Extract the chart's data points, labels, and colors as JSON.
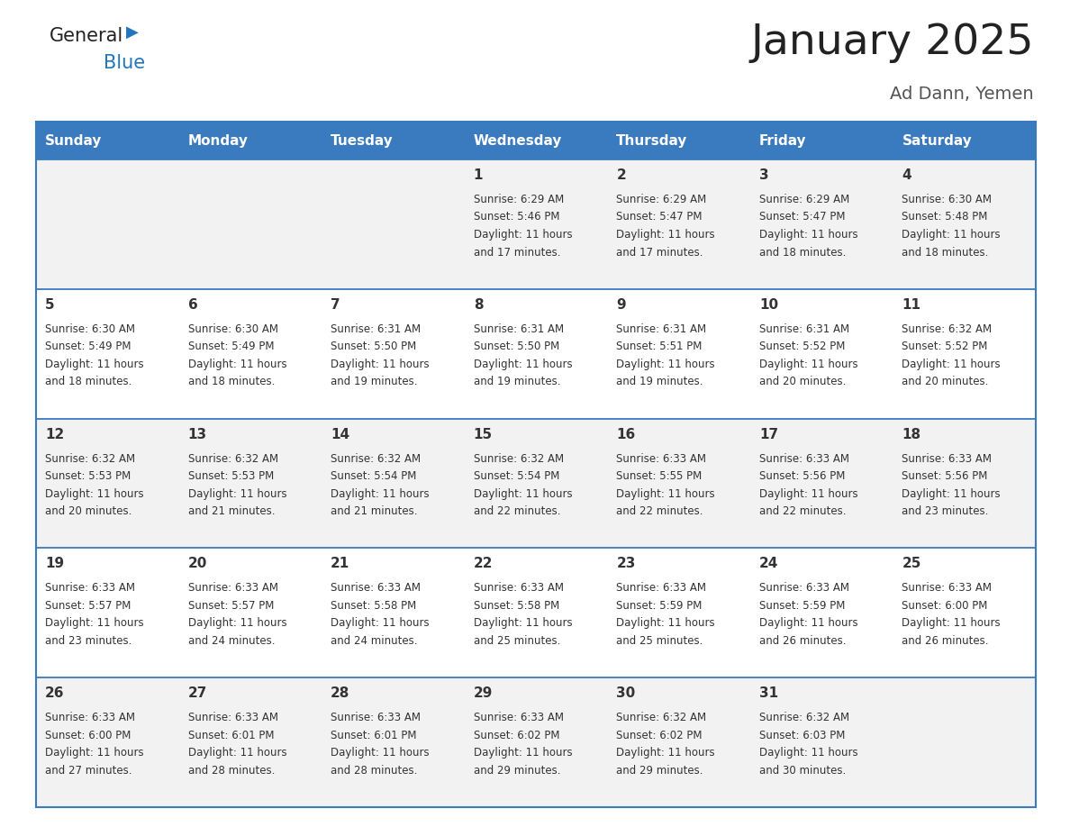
{
  "title": "January 2025",
  "subtitle": "Ad Dann, Yemen",
  "days_of_week": [
    "Sunday",
    "Monday",
    "Tuesday",
    "Wednesday",
    "Thursday",
    "Friday",
    "Saturday"
  ],
  "header_bg": "#3a7abf",
  "header_text": "#ffffff",
  "row_bg_even": "#f2f2f2",
  "row_bg_odd": "#ffffff",
  "cell_border_color": "#3a7abf",
  "day_number_color": "#333333",
  "info_text_color": "#333333",
  "logo_general_color": "#222222",
  "logo_blue_color": "#2176bc",
  "title_color": "#222222",
  "subtitle_color": "#555555",
  "calendar_data": [
    [
      null,
      null,
      null,
      {
        "day": 1,
        "sunrise": "6:29 AM",
        "sunset": "5:46 PM",
        "daylight": "11 hours and 17 minutes."
      },
      {
        "day": 2,
        "sunrise": "6:29 AM",
        "sunset": "5:47 PM",
        "daylight": "11 hours and 17 minutes."
      },
      {
        "day": 3,
        "sunrise": "6:29 AM",
        "sunset": "5:47 PM",
        "daylight": "11 hours and 18 minutes."
      },
      {
        "day": 4,
        "sunrise": "6:30 AM",
        "sunset": "5:48 PM",
        "daylight": "11 hours and 18 minutes."
      }
    ],
    [
      {
        "day": 5,
        "sunrise": "6:30 AM",
        "sunset": "5:49 PM",
        "daylight": "11 hours and 18 minutes."
      },
      {
        "day": 6,
        "sunrise": "6:30 AM",
        "sunset": "5:49 PM",
        "daylight": "11 hours and 18 minutes."
      },
      {
        "day": 7,
        "sunrise": "6:31 AM",
        "sunset": "5:50 PM",
        "daylight": "11 hours and 19 minutes."
      },
      {
        "day": 8,
        "sunrise": "6:31 AM",
        "sunset": "5:50 PM",
        "daylight": "11 hours and 19 minutes."
      },
      {
        "day": 9,
        "sunrise": "6:31 AM",
        "sunset": "5:51 PM",
        "daylight": "11 hours and 19 minutes."
      },
      {
        "day": 10,
        "sunrise": "6:31 AM",
        "sunset": "5:52 PM",
        "daylight": "11 hours and 20 minutes."
      },
      {
        "day": 11,
        "sunrise": "6:32 AM",
        "sunset": "5:52 PM",
        "daylight": "11 hours and 20 minutes."
      }
    ],
    [
      {
        "day": 12,
        "sunrise": "6:32 AM",
        "sunset": "5:53 PM",
        "daylight": "11 hours and 20 minutes."
      },
      {
        "day": 13,
        "sunrise": "6:32 AM",
        "sunset": "5:53 PM",
        "daylight": "11 hours and 21 minutes."
      },
      {
        "day": 14,
        "sunrise": "6:32 AM",
        "sunset": "5:54 PM",
        "daylight": "11 hours and 21 minutes."
      },
      {
        "day": 15,
        "sunrise": "6:32 AM",
        "sunset": "5:54 PM",
        "daylight": "11 hours and 22 minutes."
      },
      {
        "day": 16,
        "sunrise": "6:33 AM",
        "sunset": "5:55 PM",
        "daylight": "11 hours and 22 minutes."
      },
      {
        "day": 17,
        "sunrise": "6:33 AM",
        "sunset": "5:56 PM",
        "daylight": "11 hours and 22 minutes."
      },
      {
        "day": 18,
        "sunrise": "6:33 AM",
        "sunset": "5:56 PM",
        "daylight": "11 hours and 23 minutes."
      }
    ],
    [
      {
        "day": 19,
        "sunrise": "6:33 AM",
        "sunset": "5:57 PM",
        "daylight": "11 hours and 23 minutes."
      },
      {
        "day": 20,
        "sunrise": "6:33 AM",
        "sunset": "5:57 PM",
        "daylight": "11 hours and 24 minutes."
      },
      {
        "day": 21,
        "sunrise": "6:33 AM",
        "sunset": "5:58 PM",
        "daylight": "11 hours and 24 minutes."
      },
      {
        "day": 22,
        "sunrise": "6:33 AM",
        "sunset": "5:58 PM",
        "daylight": "11 hours and 25 minutes."
      },
      {
        "day": 23,
        "sunrise": "6:33 AM",
        "sunset": "5:59 PM",
        "daylight": "11 hours and 25 minutes."
      },
      {
        "day": 24,
        "sunrise": "6:33 AM",
        "sunset": "5:59 PM",
        "daylight": "11 hours and 26 minutes."
      },
      {
        "day": 25,
        "sunrise": "6:33 AM",
        "sunset": "6:00 PM",
        "daylight": "11 hours and 26 minutes."
      }
    ],
    [
      {
        "day": 26,
        "sunrise": "6:33 AM",
        "sunset": "6:00 PM",
        "daylight": "11 hours and 27 minutes."
      },
      {
        "day": 27,
        "sunrise": "6:33 AM",
        "sunset": "6:01 PM",
        "daylight": "11 hours and 28 minutes."
      },
      {
        "day": 28,
        "sunrise": "6:33 AM",
        "sunset": "6:01 PM",
        "daylight": "11 hours and 28 minutes."
      },
      {
        "day": 29,
        "sunrise": "6:33 AM",
        "sunset": "6:02 PM",
        "daylight": "11 hours and 29 minutes."
      },
      {
        "day": 30,
        "sunrise": "6:32 AM",
        "sunset": "6:02 PM",
        "daylight": "11 hours and 29 minutes."
      },
      {
        "day": 31,
        "sunrise": "6:32 AM",
        "sunset": "6:03 PM",
        "daylight": "11 hours and 30 minutes."
      },
      null
    ]
  ]
}
